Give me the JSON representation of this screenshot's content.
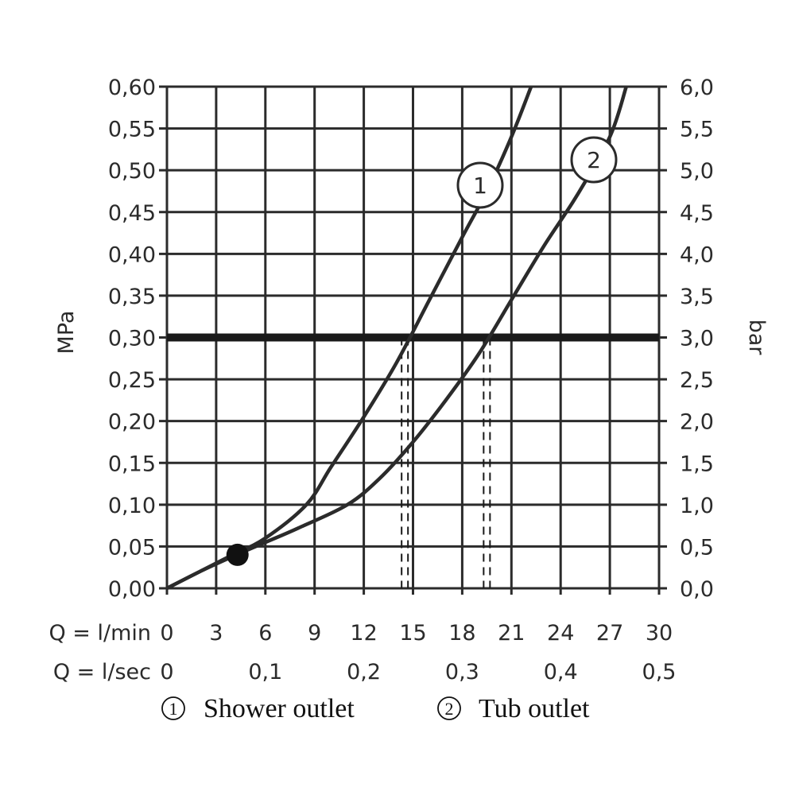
{
  "chart_data": {
    "type": "line",
    "ylabel_left": "MPa",
    "ylabel_right": "bar",
    "ylim": [
      0,
      0.6
    ],
    "xlim": [
      0,
      30
    ],
    "grid": true,
    "y_ticks_left": [
      "0,00",
      "0,05",
      "0,10",
      "0,15",
      "0,20",
      "0,25",
      "0,30",
      "0,35",
      "0,40",
      "0,45",
      "0,50",
      "0,55",
      "0,60"
    ],
    "y_ticks_right": [
      "0,0",
      "0,5",
      "1,0",
      "1,5",
      "2,0",
      "2,5",
      "3,0",
      "3,5",
      "4,0",
      "4,5",
      "5,0",
      "5,5",
      "6,0"
    ],
    "x_row1_label": "Q = l/min",
    "x_row1_ticks": [
      "0",
      "3",
      "6",
      "9",
      "12",
      "15",
      "18",
      "21",
      "24",
      "27",
      "30"
    ],
    "x_row2_label": "Q = l/sec",
    "x_row2_ticks": [
      {
        "value": 0,
        "label": "0"
      },
      {
        "value": 6,
        "label": "0,1"
      },
      {
        "value": 12,
        "label": "0,2"
      },
      {
        "value": 18,
        "label": "0,3"
      },
      {
        "value": 24,
        "label": "0,4"
      },
      {
        "value": 30,
        "label": "0,5"
      }
    ],
    "reference_line": {
      "y": 0.3
    },
    "marker_point": {
      "x": 4.3,
      "y": 0.04
    },
    "series": [
      {
        "name": "Shower outlet",
        "label": "1",
        "x": [
          0,
          2,
          4,
          6,
          8.5,
          10,
          12,
          14,
          16,
          18,
          19.5,
          21,
          22.2
        ],
        "y": [
          0,
          0.02,
          0.04,
          0.06,
          0.1,
          0.145,
          0.205,
          0.27,
          0.345,
          0.42,
          0.475,
          0.54,
          0.6
        ],
        "x_at_reference": 14.5
      },
      {
        "name": "Tub outlet",
        "label": "2",
        "x": [
          0,
          2,
          4,
          6,
          8,
          11,
          13,
          15,
          17,
          19,
          21,
          23,
          25,
          27,
          28
        ],
        "y": [
          0,
          0.02,
          0.038,
          0.055,
          0.072,
          0.1,
          0.132,
          0.175,
          0.225,
          0.28,
          0.345,
          0.41,
          0.47,
          0.54,
          0.6
        ],
        "x_at_reference": 19.5
      }
    ],
    "legend": [
      {
        "number": "1",
        "text": "Shower outlet"
      },
      {
        "number": "2",
        "text": "Tub outlet"
      }
    ]
  }
}
